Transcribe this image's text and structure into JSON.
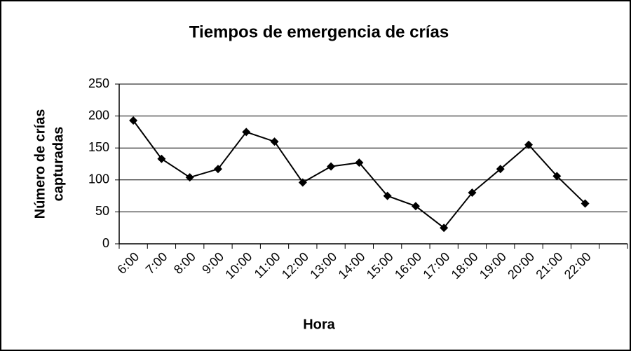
{
  "chart_data": {
    "type": "line",
    "title": "Tiempos de emergencia de crías",
    "xlabel": "Hora",
    "ylabel": [
      "Número de crías",
      "capturadas"
    ],
    "categories": [
      "6:00",
      "7:00",
      "8:00",
      "9:00",
      "10:00",
      "11:00",
      "12:00",
      "13:00",
      "14:00",
      "15:00",
      "16:00",
      "17:00",
      "18:00",
      "19:00",
      "20:00",
      "21:00",
      "22:00",
      null
    ],
    "values": [
      193,
      133,
      104,
      117,
      175,
      160,
      96,
      121,
      127,
      75,
      59,
      25,
      80,
      117,
      155,
      106,
      63,
      null
    ],
    "color": "#000000",
    "ylim": [
      0,
      250
    ],
    "yticks": [
      0,
      50,
      100,
      150,
      200,
      250
    ],
    "grid": true
  }
}
